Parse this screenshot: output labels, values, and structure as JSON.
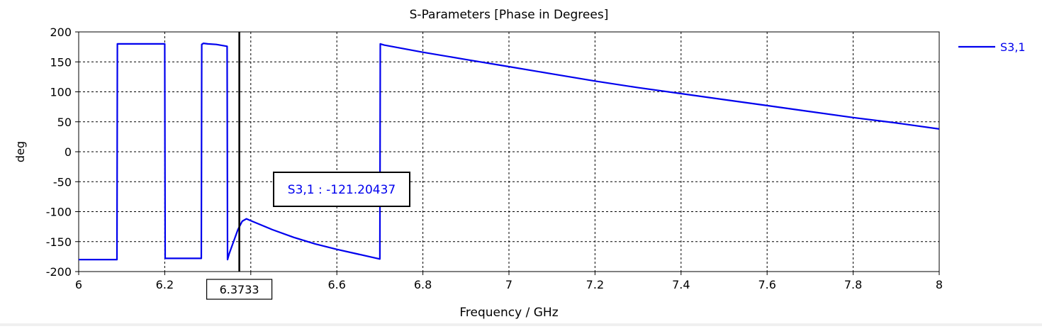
{
  "chart_data": {
    "type": "line",
    "title": "S-Parameters [Phase in Degrees]",
    "xlabel": "Frequency / GHz",
    "ylabel": "deg",
    "xlim": [
      6,
      8
    ],
    "ylim": [
      -200,
      200
    ],
    "x_ticks": [
      6,
      6.2,
      6.4,
      6.6,
      6.8,
      7,
      7.2,
      7.4,
      7.6,
      7.8,
      8
    ],
    "x_tick_labels": [
      "6",
      "6.2",
      "",
      "6.6",
      "6.8",
      "7",
      "7.2",
      "7.4",
      "7.6",
      "7.8",
      "8"
    ],
    "y_ticks": [
      200,
      150,
      100,
      50,
      0,
      -50,
      -100,
      -150,
      -200
    ],
    "y_tick_labels": [
      "200",
      "150",
      "100",
      "50",
      "0",
      "-50",
      "-100",
      "-150",
      "-200"
    ],
    "grid": true,
    "legend_position": "top-right",
    "series": [
      {
        "name": "S3,1",
        "color": "#0000ee",
        "x": [
          6.0,
          6.089,
          6.09,
          6.2,
          6.201,
          6.285,
          6.286,
          6.29,
          6.3,
          6.32,
          6.345,
          6.346,
          6.35,
          6.36,
          6.37,
          6.38,
          6.39,
          6.4,
          6.45,
          6.5,
          6.55,
          6.6,
          6.65,
          6.7,
          6.701,
          6.71,
          6.8,
          6.9,
          7.0,
          7.1,
          7.2,
          7.3,
          7.4,
          7.5,
          7.6,
          7.7,
          7.8,
          7.9,
          8.0
        ],
        "y": [
          -180,
          -180,
          180,
          180,
          -178,
          -178,
          179,
          181,
          180,
          179,
          176,
          -180,
          -170,
          -150,
          -130,
          -116,
          -112,
          -115,
          -130,
          -143,
          -154,
          -163,
          -171,
          -179,
          180,
          178,
          166,
          154,
          142,
          130,
          118,
          107,
          97,
          87,
          77,
          67,
          57,
          48,
          38
        ]
      }
    ],
    "marker": {
      "x_label": "6.3733",
      "x": 6.3733,
      "annotation": "S3,1 : -121.20437"
    }
  }
}
